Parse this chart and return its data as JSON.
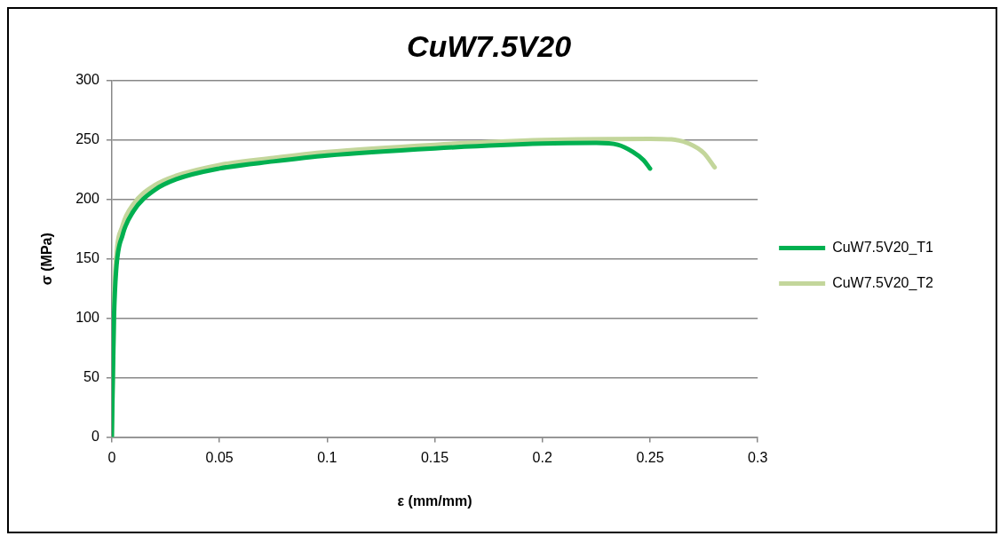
{
  "chart_data": {
    "type": "line",
    "title": "CuW7.5V20",
    "xlabel": "ε (mm/mm)",
    "ylabel": "σ (MPa)",
    "xlim": [
      0,
      0.3
    ],
    "xticks": [
      0,
      0.05,
      0.1,
      0.15,
      0.2,
      0.25,
      0.3
    ],
    "ylim": [
      0,
      300
    ],
    "yticks": [
      0,
      50,
      100,
      150,
      200,
      250,
      300
    ],
    "grid": "y",
    "legend": "right",
    "marker": "none",
    "line_style": "solid",
    "series": [
      {
        "name": "CuW7.5V20_T1",
        "color": "#00b050",
        "x": [
          0,
          0.001,
          0.002,
          0.005,
          0.01,
          0.02,
          0.03,
          0.05,
          0.075,
          0.1,
          0.15,
          0.2,
          0.225,
          0.235,
          0.242,
          0.247,
          0.25
        ],
        "values": [
          0,
          100,
          140,
          170,
          190,
          208,
          217,
          226,
          232,
          237,
          243,
          247,
          247.5,
          246,
          240,
          233,
          226
        ]
      },
      {
        "name": "CuW7.5V20_T2",
        "color": "#c3d69b",
        "x": [
          0,
          0.001,
          0.002,
          0.005,
          0.01,
          0.02,
          0.03,
          0.05,
          0.075,
          0.1,
          0.15,
          0.2,
          0.25,
          0.26,
          0.268,
          0.275,
          0.28
        ],
        "values": [
          0,
          110,
          150,
          178,
          196,
          212,
          220,
          229,
          235,
          240,
          246,
          250,
          251,
          250.5,
          247,
          239,
          227
        ]
      }
    ]
  }
}
